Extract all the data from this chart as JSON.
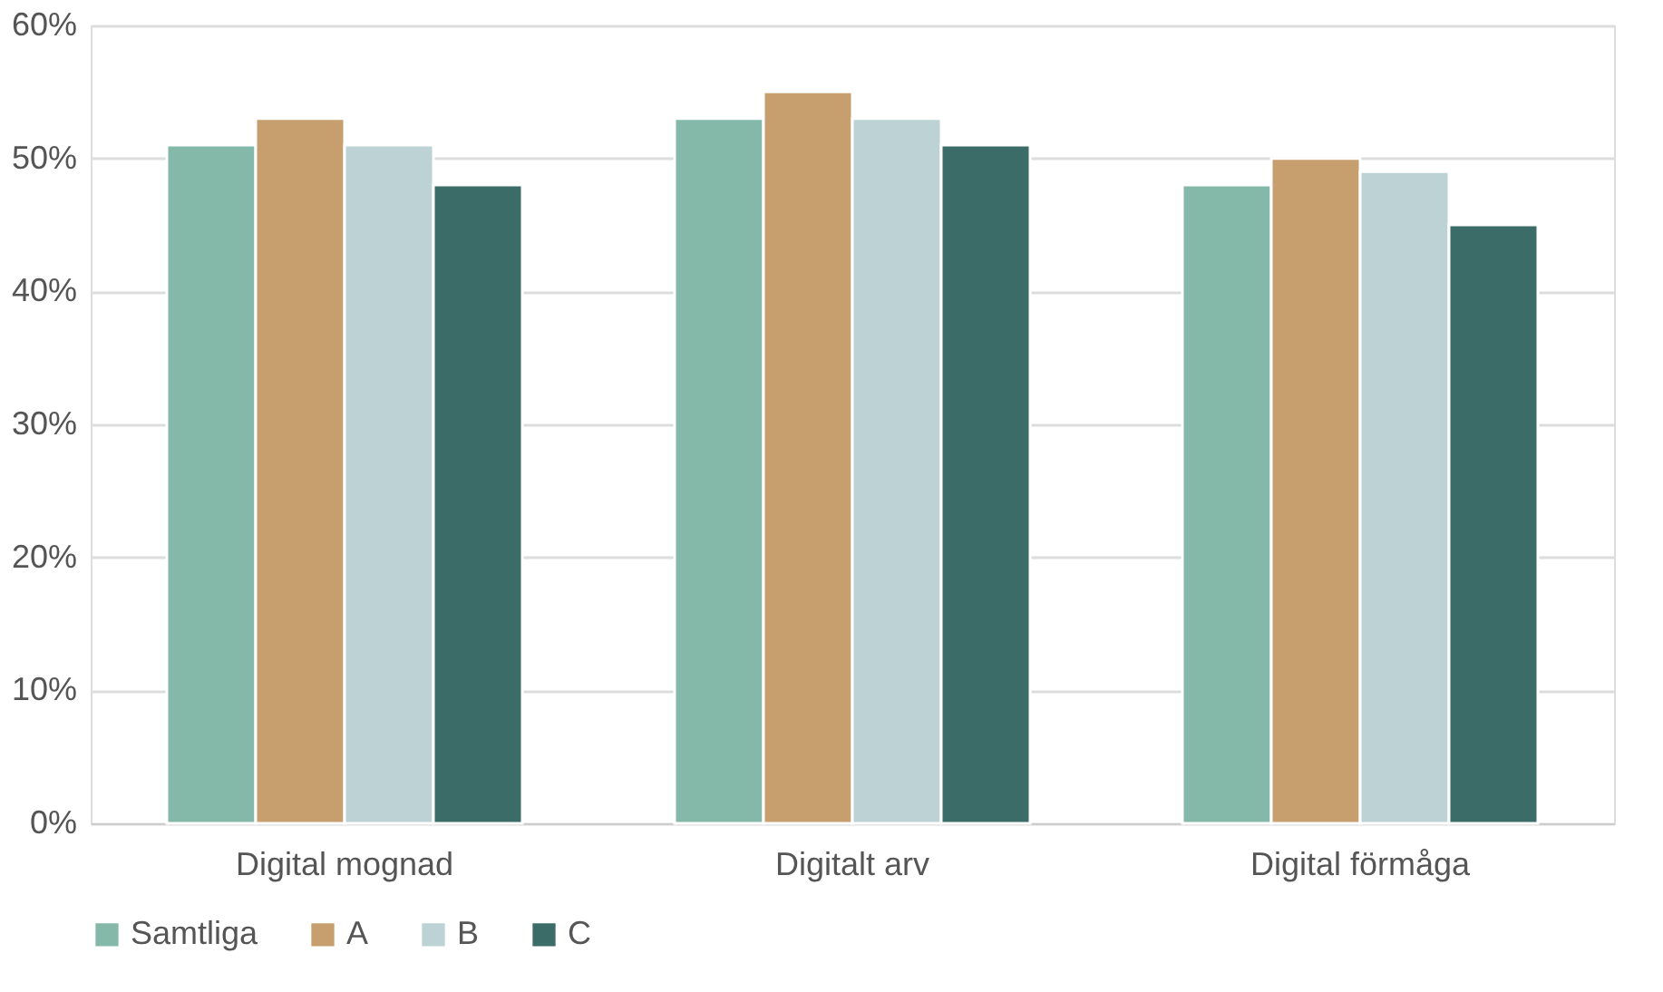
{
  "chart_data": {
    "type": "bar",
    "categories": [
      "Digital mognad",
      "Digitalt arv",
      "Digital förmåga"
    ],
    "series": [
      {
        "name": "Samtliga",
        "color": "#84b9a9",
        "values": [
          51,
          53,
          48
        ]
      },
      {
        "name": "A",
        "color": "#c79f6f",
        "values": [
          53,
          55,
          50
        ]
      },
      {
        "name": "B",
        "color": "#bcd2d5",
        "values": [
          51,
          53,
          49
        ]
      },
      {
        "name": "C",
        "color": "#3b6c67",
        "values": [
          48,
          51,
          45
        ]
      }
    ],
    "ylim": [
      0,
      60
    ],
    "yticks": [
      {
        "value": 0,
        "label": "0%"
      },
      {
        "value": 10,
        "label": "10%"
      },
      {
        "value": 20,
        "label": "20%"
      },
      {
        "value": 30,
        "label": "30%"
      },
      {
        "value": 40,
        "label": "40%"
      },
      {
        "value": 50,
        "label": "50%"
      },
      {
        "value": 60,
        "label": "60%"
      }
    ],
    "grid": "y",
    "legend": "bottom"
  }
}
